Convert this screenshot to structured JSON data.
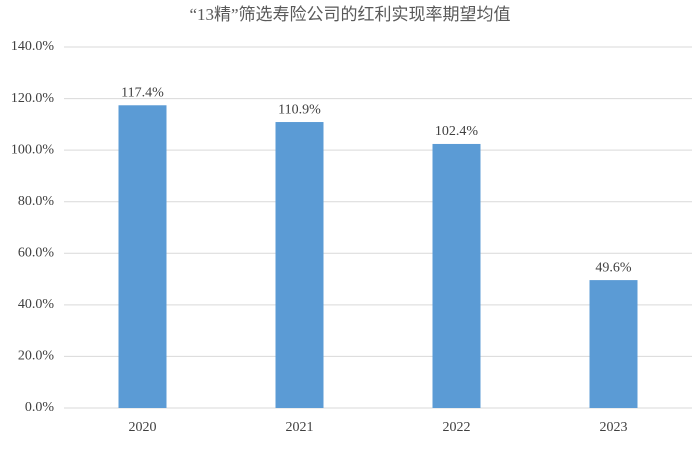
{
  "chart_data": {
    "type": "bar",
    "title": "“13精”筛选寿险公司的红利实现率期望均值",
    "categories": [
      "2020",
      "2021",
      "2022",
      "2023"
    ],
    "values": [
      117.4,
      110.9,
      102.4,
      49.6
    ],
    "value_labels": [
      "117.4%",
      "110.9%",
      "102.4%",
      "49.6%"
    ],
    "color": "#5b9bd5",
    "ylim": [
      0,
      140
    ],
    "yticks": [
      {
        "value": 0,
        "label": "0.0%"
      },
      {
        "value": 20,
        "label": "20.0%"
      },
      {
        "value": 40,
        "label": "40.0%"
      },
      {
        "value": 60,
        "label": "60.0%"
      },
      {
        "value": 80,
        "label": "80.0%"
      },
      {
        "value": 100,
        "label": "100.0%"
      },
      {
        "value": 120,
        "label": "120.0%"
      },
      {
        "value": 140,
        "label": "140.0%"
      }
    ],
    "grid": true
  }
}
